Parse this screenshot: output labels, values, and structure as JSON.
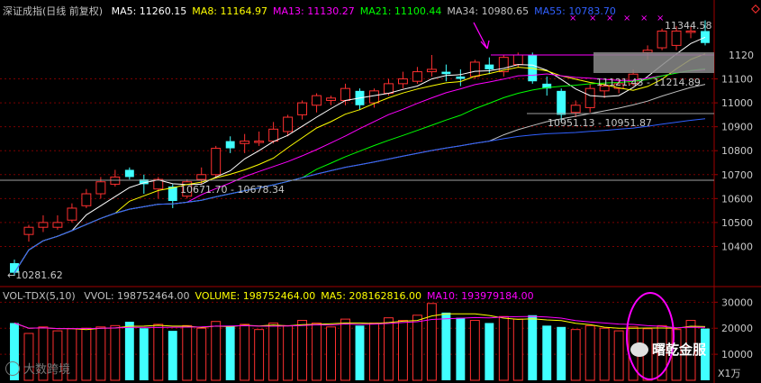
{
  "header": {
    "title": "深证成指(日线 前复权)",
    "ma": [
      {
        "label": "MA5: 11260.15",
        "color": "#ffffff"
      },
      {
        "label": "MA8: 11164.97",
        "color": "#ffff00"
      },
      {
        "label": "MA13: 11130.27",
        "color": "#ff00ff"
      },
      {
        "label": "MA21: 11100.44",
        "color": "#00ff00"
      },
      {
        "label": "MA34: 10980.65",
        "color": "#c0c0c0"
      },
      {
        "label": "MA55: 10783.70",
        "color": "#3060ff"
      }
    ]
  },
  "volume_header": {
    "title": "VOL-TDX(5,10)",
    "items": [
      {
        "label": "VVOL: 198752464.00",
        "color": "#c0c0c0"
      },
      {
        "label": "VOLUME: 198752464.00",
        "color": "#ffff00"
      },
      {
        "label": "MA5: 208162816.00",
        "color": "#ffff00"
      },
      {
        "label": "MA10: 193979184.00",
        "color": "#ff00ff"
      }
    ]
  },
  "price_annotations": {
    "low_label": "←10281.62",
    "mid_low_label": "10671.70 - 10678.34",
    "recent_low_label": "10951.13 - 10951.87",
    "mid_label": "11121.43 - 11214.89",
    "high_label": "11344.58",
    "ref_line_label": "1120"
  },
  "volume_unit": "X1万",
  "watermarks": {
    "left": "大数跨境",
    "right": "曙乾金服"
  },
  "colors": {
    "up": "#ff3030",
    "down": "#40ffff",
    "ma5": "#ffffff",
    "ma8": "#ffff00",
    "ma13": "#ff00ff",
    "ma21": "#00ff00",
    "ma34": "#c0c0c0",
    "ma55": "#3060ff",
    "grid": "#7a0000",
    "annot": "#ff00ff"
  },
  "chart_data": {
    "type": "candlestick",
    "y_ticks": [
      10400,
      10500,
      10600,
      10700,
      10800,
      10900,
      11000,
      11100
    ],
    "volume_ticks": [
      10000,
      20000,
      30000
    ],
    "candles": [
      {
        "o": 10330,
        "h": 10345,
        "l": 10280,
        "c": 10290,
        "v": 22000
      },
      {
        "o": 10450,
        "h": 10490,
        "l": 10420,
        "c": 10480,
        "v": 18000
      },
      {
        "o": 10480,
        "h": 10530,
        "l": 10460,
        "c": 10500,
        "v": 20500
      },
      {
        "o": 10480,
        "h": 10530,
        "l": 10470,
        "c": 10500,
        "v": 19000
      },
      {
        "o": 10510,
        "h": 10580,
        "l": 10500,
        "c": 10560,
        "v": 19800
      },
      {
        "o": 10570,
        "h": 10640,
        "l": 10560,
        "c": 10620,
        "v": 20000
      },
      {
        "o": 10620,
        "h": 10690,
        "l": 10600,
        "c": 10670,
        "v": 20500
      },
      {
        "o": 10660,
        "h": 10720,
        "l": 10650,
        "c": 10690,
        "v": 21000
      },
      {
        "o": 10720,
        "h": 10730,
        "l": 10680,
        "c": 10690,
        "v": 22500
      },
      {
        "o": 10680,
        "h": 10700,
        "l": 10620,
        "c": 10660,
        "v": 20000
      },
      {
        "o": 10640,
        "h": 10690,
        "l": 10600,
        "c": 10680,
        "v": 21500
      },
      {
        "o": 10650,
        "h": 10660,
        "l": 10560,
        "c": 10590,
        "v": 19000
      },
      {
        "o": 10610,
        "h": 10680,
        "l": 10600,
        "c": 10670,
        "v": 21000
      },
      {
        "o": 10680,
        "h": 10730,
        "l": 10660,
        "c": 10700,
        "v": 20000
      },
      {
        "o": 10700,
        "h": 10820,
        "l": 10690,
        "c": 10810,
        "v": 22600
      },
      {
        "o": 10840,
        "h": 10860,
        "l": 10790,
        "c": 10810,
        "v": 20600
      },
      {
        "o": 10830,
        "h": 10870,
        "l": 10790,
        "c": 10840,
        "v": 21500
      },
      {
        "o": 10840,
        "h": 10880,
        "l": 10820,
        "c": 10840,
        "v": 19500
      },
      {
        "o": 10840,
        "h": 10920,
        "l": 10830,
        "c": 10890,
        "v": 22000
      },
      {
        "o": 10880,
        "h": 10950,
        "l": 10860,
        "c": 10940,
        "v": 21000
      },
      {
        "o": 10950,
        "h": 11010,
        "l": 10930,
        "c": 11000,
        "v": 23000
      },
      {
        "o": 10990,
        "h": 11040,
        "l": 10960,
        "c": 11030,
        "v": 22000
      },
      {
        "o": 11010,
        "h": 11030,
        "l": 10990,
        "c": 11020,
        "v": 20500
      },
      {
        "o": 11010,
        "h": 11080,
        "l": 10990,
        "c": 11060,
        "v": 23500
      },
      {
        "o": 11050,
        "h": 11060,
        "l": 10970,
        "c": 10990,
        "v": 21000
      },
      {
        "o": 11000,
        "h": 11060,
        "l": 10980,
        "c": 11050,
        "v": 22000
      },
      {
        "o": 11040,
        "h": 11100,
        "l": 11030,
        "c": 11080,
        "v": 24000
      },
      {
        "o": 11080,
        "h": 11130,
        "l": 11060,
        "c": 11100,
        "v": 23000
      },
      {
        "o": 11090,
        "h": 11150,
        "l": 11080,
        "c": 11130,
        "v": 25000
      },
      {
        "o": 11130,
        "h": 11200,
        "l": 11110,
        "c": 11140,
        "v": 29500
      },
      {
        "o": 11130,
        "h": 11160,
        "l": 11090,
        "c": 11120,
        "v": 26000
      },
      {
        "o": 11110,
        "h": 11140,
        "l": 11070,
        "c": 11100,
        "v": 24000
      },
      {
        "o": 11110,
        "h": 11180,
        "l": 11100,
        "c": 11170,
        "v": 23000
      },
      {
        "o": 11160,
        "h": 11190,
        "l": 11120,
        "c": 11140,
        "v": 22000
      },
      {
        "o": 11130,
        "h": 11200,
        "l": 11110,
        "c": 11190,
        "v": 24500
      },
      {
        "o": 11160,
        "h": 11210,
        "l": 11150,
        "c": 11200,
        "v": 23500
      },
      {
        "o": 11200,
        "h": 11210,
        "l": 11080,
        "c": 11090,
        "v": 25000
      },
      {
        "o": 11080,
        "h": 11110,
        "l": 11030,
        "c": 11060,
        "v": 21000
      },
      {
        "o": 11050,
        "h": 11060,
        "l": 10920,
        "c": 10950,
        "v": 20500
      },
      {
        "o": 10960,
        "h": 11010,
        "l": 10940,
        "c": 10990,
        "v": 19500
      },
      {
        "o": 10980,
        "h": 11080,
        "l": 10960,
        "c": 11060,
        "v": 21000
      },
      {
        "o": 11050,
        "h": 11080,
        "l": 11020,
        "c": 11070,
        "v": 20000
      },
      {
        "o": 11060,
        "h": 11100,
        "l": 11040,
        "c": 11080,
        "v": 19000
      },
      {
        "o": 11080,
        "h": 11140,
        "l": 11070,
        "c": 11120,
        "v": 20500
      },
      {
        "o": 11210,
        "h": 11240,
        "l": 11180,
        "c": 11220,
        "v": 19800
      },
      {
        "o": 11230,
        "h": 11310,
        "l": 11220,
        "c": 11300,
        "v": 21000
      },
      {
        "o": 11240,
        "h": 11320,
        "l": 11220,
        "c": 11300,
        "v": 19500
      },
      {
        "o": 11295,
        "h": 11320,
        "l": 11270,
        "c": 11300,
        "v": 23000
      },
      {
        "o": 11300,
        "h": 11344.58,
        "l": 11240,
        "c": 11250,
        "v": 19875
      }
    ]
  }
}
